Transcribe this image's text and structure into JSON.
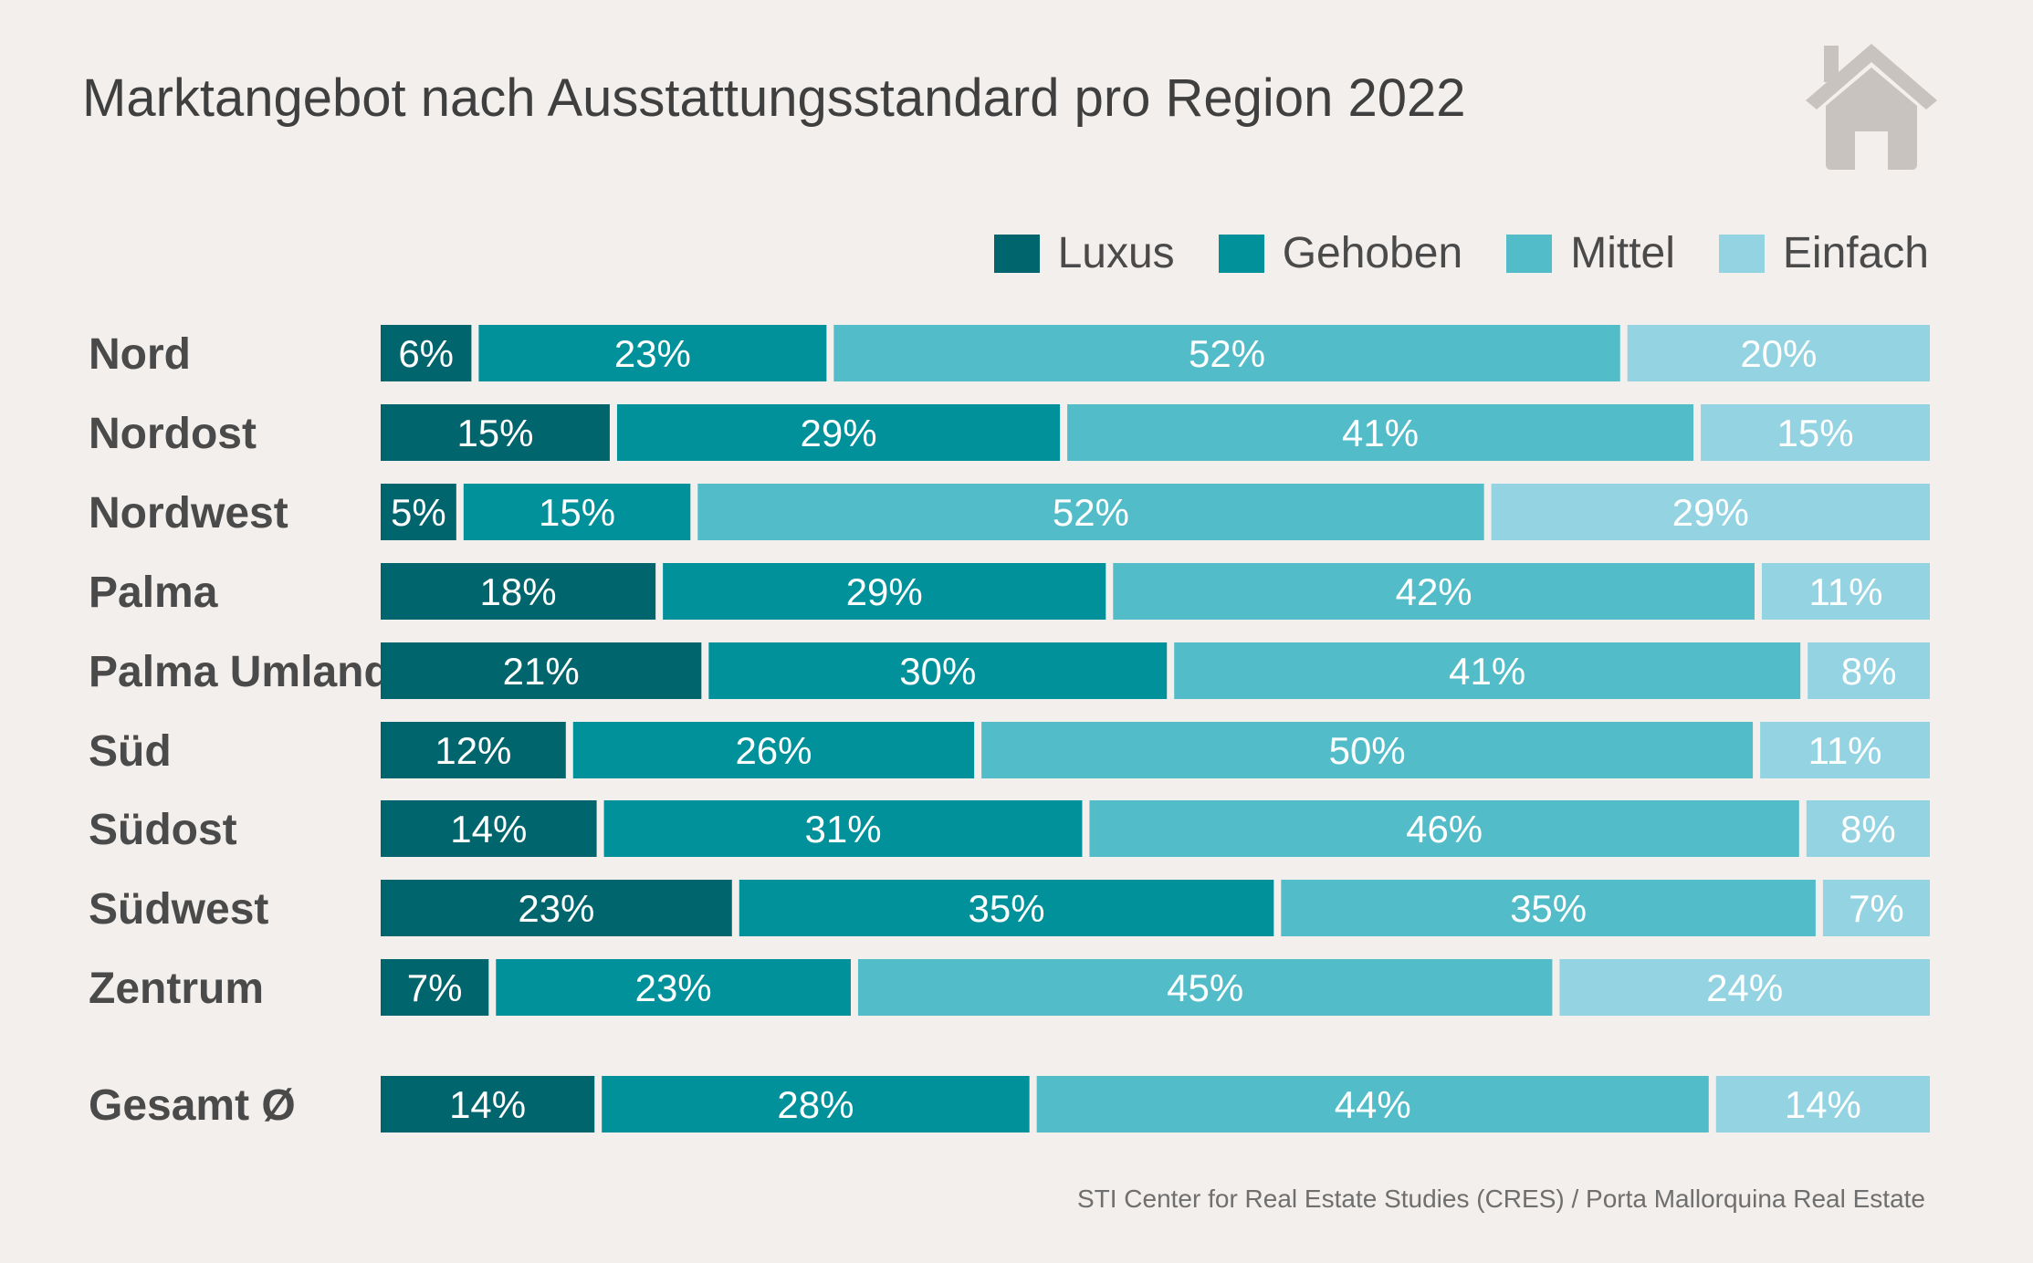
{
  "chart_data": {
    "type": "bar",
    "orientation": "horizontal",
    "stacked": true,
    "normalized": true,
    "title": "Marktangebot nach Ausstattungsstandard pro Region 2022",
    "categories": [
      "Nord",
      "Nordost",
      "Nordwest",
      "Palma",
      "Palma Umland",
      "Süd",
      "Südost",
      "Südwest",
      "Zentrum",
      "Gesamt Ø"
    ],
    "series": [
      {
        "name": "Luxus",
        "color": "#00656d",
        "values": [
          6,
          15,
          5,
          18,
          21,
          12,
          14,
          23,
          7,
          14
        ]
      },
      {
        "name": "Gehoben",
        "color": "#00919b",
        "values": [
          23,
          29,
          15,
          29,
          30,
          26,
          31,
          35,
          23,
          28
        ]
      },
      {
        "name": "Mittel",
        "color": "#52bcc8",
        "values": [
          52,
          41,
          52,
          42,
          41,
          50,
          46,
          35,
          45,
          44
        ]
      },
      {
        "name": "Einfach",
        "color": "#94d3e2",
        "values": [
          20,
          15,
          29,
          11,
          8,
          11,
          8,
          7,
          24,
          14
        ]
      }
    ],
    "value_suffix": "%",
    "legend_position": "top-right",
    "grid": false,
    "xlabel": "",
    "ylabel": ""
  },
  "source": "STI Center for Real Estate Studies (CRES) / Porta Mallorquina Real Estate",
  "icon": "house-icon",
  "colors": {
    "background": "#f2efec",
    "text": "#4a4a4a",
    "icon": "#c9c3bf"
  }
}
